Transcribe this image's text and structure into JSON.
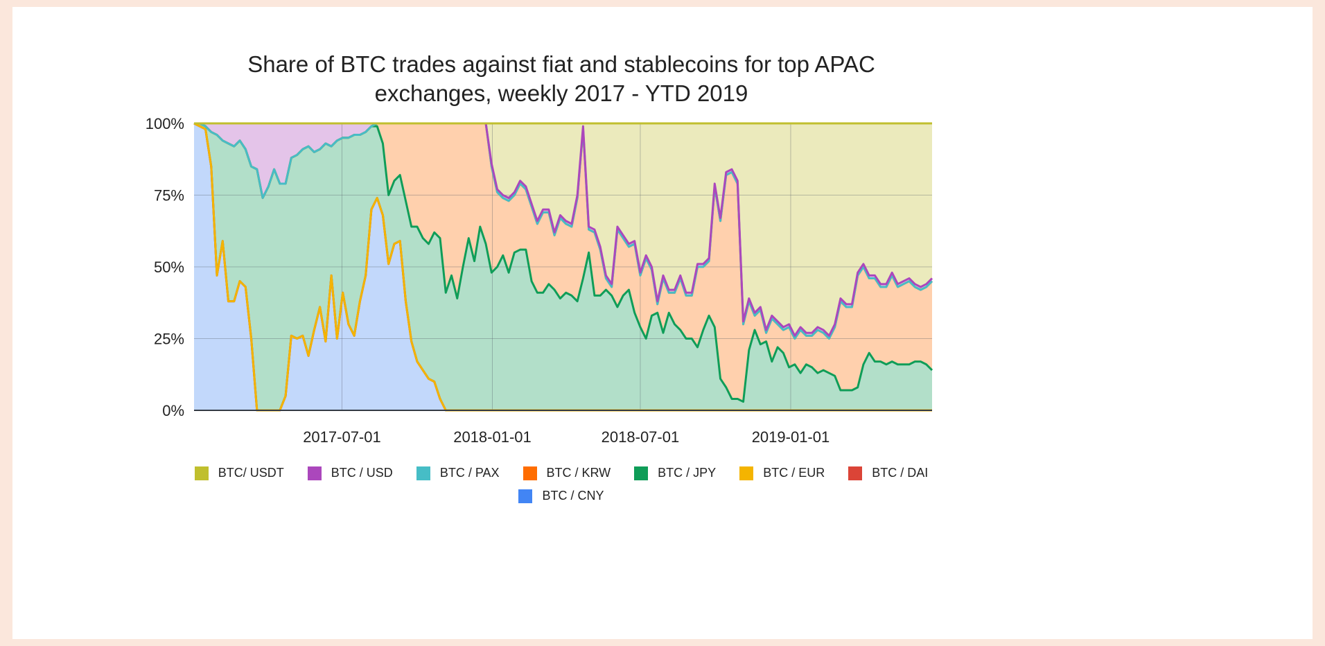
{
  "chart_data": {
    "type": "area",
    "stacked": true,
    "title_line1": "Share of BTC trades against fiat and stablecoins for top APAC",
    "title_line2": "exchanges, weekly 2017 - YTD 2019",
    "xlabel": "",
    "ylabel": "",
    "x_start": "2017-01-01",
    "x_frequency": "weekly",
    "x_ticks": [
      "2017-07-01",
      "2018-01-01",
      "2018-07-01",
      "2019-01-01"
    ],
    "y_ticks": [
      0,
      25,
      50,
      75,
      100
    ],
    "y_tick_labels": [
      "0%",
      "25%",
      "50%",
      "75%",
      "100%"
    ],
    "ylim": [
      0,
      100
    ],
    "grid": true,
    "legend_position": "bottom",
    "series": [
      {
        "name": "BTC / CNY",
        "color": "#4285f4",
        "values": [
          100,
          99,
          98,
          85,
          47,
          59,
          38,
          38,
          45,
          43,
          25,
          0,
          0,
          0,
          0,
          0,
          5,
          26,
          25,
          26,
          19,
          28,
          36,
          24,
          47,
          25,
          41,
          30,
          26,
          38,
          47,
          70,
          74,
          68,
          51,
          58,
          59,
          38,
          24,
          17,
          14,
          11,
          10,
          4
        ]
      },
      {
        "name": "BTC / DAI",
        "color": "#db4437",
        "values": []
      },
      {
        "name": "BTC / EUR",
        "color": "#f4b400",
        "values": []
      },
      {
        "name": "BTC / JPY",
        "color": "#0f9d58",
        "values": [
          0,
          1,
          1,
          12,
          49,
          35,
          55,
          54,
          49,
          48,
          60,
          84,
          74,
          78,
          84,
          79,
          74,
          62,
          64,
          65,
          73,
          62,
          55,
          69,
          45,
          69,
          54,
          65,
          70,
          58,
          50,
          29,
          25,
          25,
          24,
          22,
          23,
          35,
          40,
          47,
          46,
          47,
          52,
          56,
          41,
          47,
          39,
          50,
          60,
          52,
          64,
          58,
          48,
          50,
          54,
          48,
          55,
          56,
          56,
          45,
          41,
          41,
          44,
          42,
          39,
          41,
          40,
          38,
          46,
          55,
          40,
          40,
          42,
          40,
          36,
          40,
          42,
          34,
          29,
          25,
          33,
          34,
          27,
          34,
          30,
          28,
          25,
          25,
          22,
          28,
          33,
          29,
          11,
          8,
          4,
          4,
          3,
          21,
          28,
          23,
          24,
          17,
          22,
          20,
          15,
          16,
          13,
          16,
          15,
          13,
          14,
          13,
          12,
          7,
          7,
          7,
          8,
          16,
          20,
          17,
          17,
          16,
          17,
          16,
          16,
          16,
          17,
          17,
          16,
          14
        ]
      },
      {
        "name": "BTC / KRW",
        "color": "#ff6d01",
        "values": [
          0,
          0,
          0,
          0,
          0,
          0,
          0,
          0,
          0,
          0,
          0,
          0,
          0,
          0,
          0,
          0,
          0,
          0,
          0,
          0,
          0,
          0,
          0,
          0,
          0,
          0,
          0,
          0,
          0,
          0,
          0,
          0,
          1,
          7,
          25,
          20,
          18,
          27,
          36,
          36,
          40,
          42,
          38,
          40,
          59,
          53,
          61,
          50,
          40,
          48,
          36,
          42,
          37,
          26,
          20,
          25,
          20,
          23,
          21,
          26,
          24,
          28,
          25,
          19,
          28,
          24,
          24,
          36,
          52,
          8,
          22,
          16,
          4,
          3,
          27,
          20,
          15,
          24,
          18,
          28,
          16,
          3,
          19,
          7,
          11,
          18,
          15,
          15,
          28,
          22,
          19,
          49,
          55,
          74,
          79,
          75,
          27,
          17,
          5,
          12,
          3,
          15,
          8,
          8,
          14,
          9,
          15,
          10,
          11,
          15,
          13,
          12,
          17,
          31,
          29,
          29,
          39,
          34,
          26,
          29,
          26,
          27,
          30,
          27,
          28,
          29,
          26,
          25,
          27,
          31
        ]
      },
      {
        "name": "BTC / PAX",
        "color": "#46bdc6",
        "values": []
      },
      {
        "name": "BTC / USD",
        "color": "#ab47bc",
        "values": [
          0,
          0,
          1,
          3,
          4,
          6,
          7,
          8,
          6,
          9,
          15,
          16,
          26,
          22,
          16,
          21,
          21,
          12,
          11,
          9,
          8,
          10,
          9,
          7,
          8,
          6,
          5,
          5,
          4,
          4,
          3,
          1,
          0,
          0,
          0,
          0,
          0,
          0,
          0,
          0,
          0,
          0,
          0,
          0,
          0,
          0,
          0,
          0,
          0,
          0,
          0,
          0,
          1,
          1,
          1,
          1,
          1,
          1,
          1,
          1,
          1,
          1,
          1,
          1,
          1,
          1,
          1,
          1,
          1,
          1,
          1,
          1,
          1,
          1,
          1,
          1,
          1,
          1,
          1,
          1,
          1,
          1,
          1,
          1,
          1,
          1,
          1,
          1,
          1,
          1,
          1,
          1,
          1,
          1,
          1,
          1,
          1,
          1,
          1,
          1,
          1,
          1,
          1,
          1,
          1,
          1,
          1,
          1,
          1,
          1,
          1,
          1,
          1,
          1,
          1,
          1,
          1,
          1,
          1,
          1,
          1,
          1,
          1,
          1,
          1,
          1,
          1,
          1,
          1,
          1
        ]
      },
      {
        "name": "BTC/ USDT",
        "color": "#c0bf2e",
        "values": [
          0,
          0,
          0,
          0,
          0,
          0,
          0,
          0,
          0,
          0,
          0,
          0,
          0,
          0,
          0,
          0,
          0,
          0,
          0,
          0,
          0,
          0,
          0,
          0,
          0,
          0,
          0,
          0,
          0,
          0,
          0,
          0,
          0,
          0,
          0,
          0,
          0,
          0,
          0,
          0,
          0,
          0,
          0,
          0,
          0,
          0,
          0,
          0,
          0,
          0,
          0,
          0,
          14,
          23,
          25,
          26,
          24,
          20,
          22,
          28,
          34,
          30,
          30,
          38,
          32,
          34,
          35,
          25,
          1,
          36,
          37,
          43,
          53,
          56,
          36,
          39,
          42,
          41,
          52,
          46,
          50,
          62,
          53,
          58,
          58,
          53,
          59,
          59,
          49,
          49,
          47,
          21,
          33,
          17,
          16,
          20,
          69,
          61,
          66,
          64,
          72,
          67,
          69,
          71,
          70,
          74,
          71,
          73,
          73,
          71,
          72,
          74,
          70,
          61,
          63,
          63,
          52,
          49,
          53,
          53,
          56,
          56,
          52,
          56,
          55,
          54,
          56,
          57,
          56,
          54
        ]
      }
    ],
    "legend_order": [
      "BTC/ USDT",
      "BTC / USD",
      "BTC / PAX",
      "BTC / KRW",
      "BTC / JPY",
      "BTC / EUR",
      "BTC / DAI",
      "BTC / CNY"
    ]
  }
}
